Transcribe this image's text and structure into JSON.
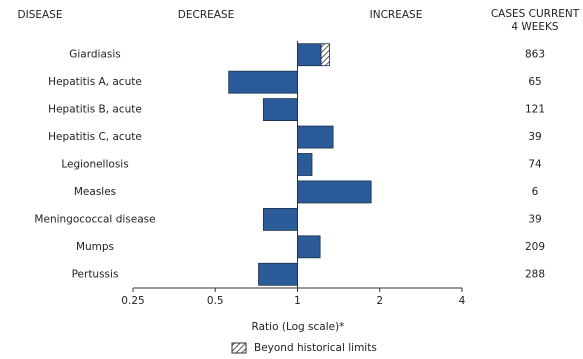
{
  "chart_data": {
    "type": "bar",
    "orientation": "horizontal",
    "log_scale": true,
    "headers": {
      "disease": "DISEASE",
      "decrease": "DECREASE",
      "increase": "INCREASE",
      "cases": [
        "CASES CURRENT",
        "4 WEEKS"
      ]
    },
    "categories": [
      "Giardiasis",
      "Hepatitis A, acute",
      "Hepatitis B, acute",
      "Hepatitis C, acute",
      "Legionellosis",
      "Measles",
      "Meningococcal disease",
      "Mumps",
      "Pertussis"
    ],
    "series": [
      {
        "name": "Ratio",
        "color": "#2b5c99",
        "values": [
          1.31,
          0.56,
          0.75,
          1.35,
          1.13,
          1.86,
          0.75,
          1.21,
          0.72
        ],
        "historical_limits": [
          1.22,
          null,
          null,
          null,
          null,
          null,
          null,
          null,
          null
        ]
      }
    ],
    "cases": [
      863,
      65,
      121,
      39,
      74,
      6,
      39,
      209,
      288
    ],
    "xlim": [
      0.25,
      4
    ],
    "xticks": [
      0.25,
      0.5,
      1,
      2,
      4
    ],
    "xlabel": "Ratio (Log scale)*",
    "legend": {
      "label": "Beyond historical limits",
      "position": "bottom"
    }
  }
}
